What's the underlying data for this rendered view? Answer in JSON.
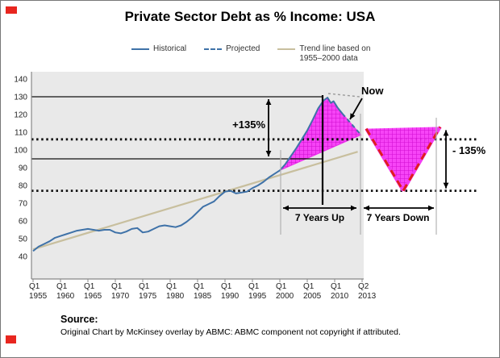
{
  "title": "Private Sector Debt as % Income: USA",
  "legend": {
    "items": [
      {
        "label": "Historical",
        "color": "#3f72a8",
        "line_style": "solid"
      },
      {
        "label": "Projected",
        "color": "#3f72a8",
        "line_style": "dashed"
      },
      {
        "label": "Trend line based on",
        "label2": "1955–2000 data",
        "color": "#c8bf9e",
        "line_style": "solid"
      }
    ]
  },
  "annotations": {
    "now": "Now",
    "plus": "+135%",
    "minus": "- 135%",
    "years_up": "7 Years Up",
    "years_down": "7 Years Down"
  },
  "source": {
    "heading": "Source:",
    "text": "Original Chart by McKinsey overlay by ABMC: ABMC component not copyright if attributed."
  },
  "chart_data": {
    "type": "line",
    "title": "Private Sector Debt as % Income: USA",
    "x_axis": {
      "ticks": [
        {
          "q": "Q1",
          "year": "1955"
        },
        {
          "q": "Q1",
          "year": "1960"
        },
        {
          "q": "Q1",
          "year": "1965"
        },
        {
          "q": "Q1",
          "year": "1970"
        },
        {
          "q": "Q1",
          "year": "1975"
        },
        {
          "q": "Q1",
          "year": "1980"
        },
        {
          "q": "Q1",
          "year": "1985"
        },
        {
          "q": "Q1",
          "year": "1990"
        },
        {
          "q": "Q1",
          "year": "1995"
        },
        {
          "q": "Q1",
          "year": "2000"
        },
        {
          "q": "Q1",
          "year": "2005"
        },
        {
          "q": "Q1",
          "year": "2010"
        },
        {
          "q": "Q2",
          "year": "2013"
        }
      ]
    },
    "y_axis": {
      "ticks": [
        140,
        130,
        120,
        110,
        100,
        90,
        80,
        70,
        60,
        50,
        40
      ],
      "range": [
        40,
        140
      ]
    },
    "series": [
      {
        "name": "Historical",
        "line_style": "solid",
        "color": "#3f72a8",
        "points": [
          [
            1955,
            43
          ],
          [
            1956,
            45.5
          ],
          [
            1957,
            47
          ],
          [
            1958,
            48.5
          ],
          [
            1959,
            50.5
          ],
          [
            1960,
            51.5
          ],
          [
            1961,
            52.5
          ],
          [
            1962,
            53.5
          ],
          [
            1963,
            54.5
          ],
          [
            1964,
            55
          ],
          [
            1965,
            55.5
          ],
          [
            1966,
            55
          ],
          [
            1967,
            54.5
          ],
          [
            1968,
            55
          ],
          [
            1969,
            55
          ],
          [
            1970,
            53.5
          ],
          [
            1971,
            53
          ],
          [
            1972,
            54
          ],
          [
            1973,
            55.5
          ],
          [
            1974,
            56
          ],
          [
            1975,
            53.5
          ],
          [
            1976,
            54
          ],
          [
            1977,
            55.5
          ],
          [
            1978,
            57
          ],
          [
            1979,
            57.5
          ],
          [
            1980,
            57
          ],
          [
            1981,
            56.5
          ],
          [
            1982,
            57.5
          ],
          [
            1983,
            59.5
          ],
          [
            1984,
            62
          ],
          [
            1985,
            65
          ],
          [
            1986,
            68
          ],
          [
            1987,
            69.5
          ],
          [
            1988,
            71
          ],
          [
            1989,
            74
          ],
          [
            1990,
            76.5
          ],
          [
            1991,
            77
          ],
          [
            1992,
            75.5
          ],
          [
            1993,
            76
          ],
          [
            1994,
            76.5
          ],
          [
            1995,
            78.5
          ],
          [
            1996,
            80
          ],
          [
            1997,
            82
          ],
          [
            1998,
            84.5
          ],
          [
            1999,
            86.5
          ],
          [
            2000,
            88.5
          ],
          [
            2001,
            92
          ],
          [
            2002,
            96.5
          ],
          [
            2003,
            101
          ],
          [
            2004,
            106
          ],
          [
            2005,
            111
          ],
          [
            2006,
            117
          ],
          [
            2007,
            123.5
          ],
          [
            2008,
            128
          ],
          [
            2008.7,
            129.5
          ],
          [
            2009.3,
            126.5
          ],
          [
            2009.8,
            127.5
          ],
          [
            2010.5,
            124
          ],
          [
            2011.4,
            120.5
          ]
        ]
      },
      {
        "name": "Projected",
        "line_style": "dashed",
        "color": "#3f72a8",
        "points": [
          [
            2011.4,
            120.5
          ],
          [
            2014.8,
            108.5
          ]
        ]
      },
      {
        "name": "Trend line based on 1955–2000 data",
        "line_style": "solid",
        "color": "#c8bf9e",
        "points": [
          [
            1955,
            44
          ],
          [
            2014.2,
            99
          ]
        ]
      }
    ],
    "overlays": {
      "up_wedge": {
        "color": "#f73af7",
        "start_year": 2000,
        "tail_point": [
          2014.8,
          108.5
        ]
      },
      "down_v": {
        "color": "#f73af7",
        "edge_color": "#e01e1e",
        "top_left_value": 112,
        "bottom_value": 77,
        "top_right_value": 113
      },
      "ref_lines_solid": [
        130,
        95
      ],
      "ref_lines_dotted": [
        106,
        77
      ],
      "plus_arrow_span": [
        130,
        95
      ],
      "minus_arrow_span": [
        113,
        77
      ]
    }
  }
}
